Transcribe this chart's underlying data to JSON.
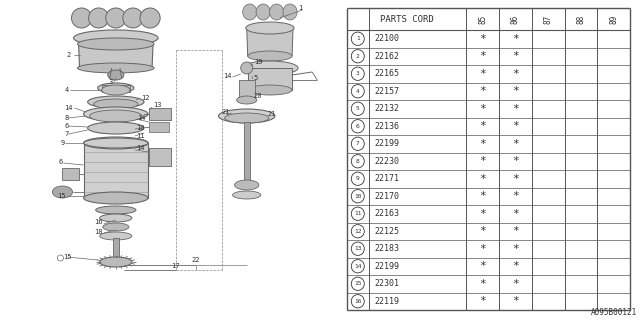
{
  "watermark": "A095B00121",
  "table_header": "PARTS CORD",
  "year_cols": [
    "85",
    "86",
    "87",
    "88",
    "89"
  ],
  "parts": [
    {
      "num": 1,
      "code": "22100",
      "marks": [
        true,
        true,
        false,
        false,
        false
      ]
    },
    {
      "num": 2,
      "code": "22162",
      "marks": [
        true,
        true,
        false,
        false,
        false
      ]
    },
    {
      "num": 3,
      "code": "22165",
      "marks": [
        true,
        true,
        false,
        false,
        false
      ]
    },
    {
      "num": 4,
      "code": "22157",
      "marks": [
        true,
        true,
        false,
        false,
        false
      ]
    },
    {
      "num": 5,
      "code": "22132",
      "marks": [
        true,
        true,
        false,
        false,
        false
      ]
    },
    {
      "num": 6,
      "code": "22136",
      "marks": [
        true,
        true,
        false,
        false,
        false
      ]
    },
    {
      "num": 7,
      "code": "22199",
      "marks": [
        true,
        true,
        false,
        false,
        false
      ]
    },
    {
      "num": 8,
      "code": "22230",
      "marks": [
        true,
        true,
        false,
        false,
        false
      ]
    },
    {
      "num": 9,
      "code": "22171",
      "marks": [
        true,
        true,
        false,
        false,
        false
      ]
    },
    {
      "num": 10,
      "code": "22170",
      "marks": [
        true,
        true,
        false,
        false,
        false
      ]
    },
    {
      "num": 11,
      "code": "22163",
      "marks": [
        true,
        true,
        false,
        false,
        false
      ]
    },
    {
      "num": 12,
      "code": "22125",
      "marks": [
        true,
        true,
        false,
        false,
        false
      ]
    },
    {
      "num": 13,
      "code": "22183",
      "marks": [
        true,
        true,
        false,
        false,
        false
      ]
    },
    {
      "num": 14,
      "code": "22199",
      "marks": [
        true,
        true,
        false,
        false,
        false
      ]
    },
    {
      "num": 15,
      "code": "22301",
      "marks": [
        true,
        true,
        false,
        false,
        false
      ]
    },
    {
      "num": 16,
      "code": "22119",
      "marks": [
        true,
        true,
        false,
        false,
        false
      ]
    }
  ],
  "bg_color": "#ffffff",
  "line_color": "#555555",
  "text_color": "#333333",
  "table_lc": "#555555",
  "diag_lc": "#666666",
  "diag_fc": "#cccccc",
  "diag_fc2": "#aaaaaa"
}
